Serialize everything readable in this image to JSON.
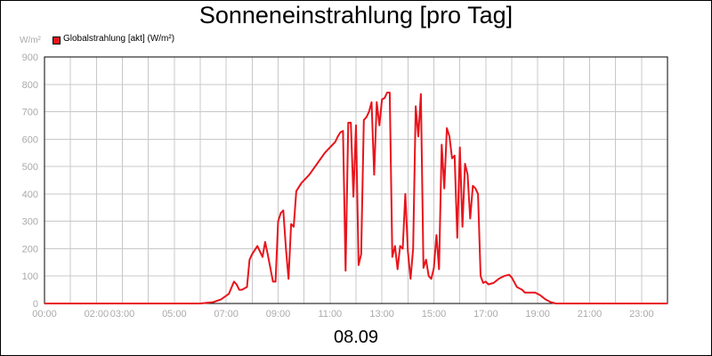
{
  "chart_data": {
    "type": "line",
    "title": "Sonneneinstrahlung [pro Tag]",
    "unit_label": "W/m²",
    "date_label": "08.09",
    "grid": true,
    "legend_placement": "top-left",
    "ylim": [
      0,
      900
    ],
    "xlim": [
      0,
      24
    ],
    "y_ticks": [
      "0",
      "100",
      "200",
      "300",
      "400",
      "500",
      "600",
      "700",
      "800",
      "900"
    ],
    "x_ticks": [
      {
        "pos": 0,
        "label": "00:00"
      },
      {
        "pos": 2,
        "label": "02:00"
      },
      {
        "pos": 3,
        "label": "03:00"
      },
      {
        "pos": 5,
        "label": "05:00"
      },
      {
        "pos": 7,
        "label": "07:00"
      },
      {
        "pos": 9,
        "label": "09:00"
      },
      {
        "pos": 11,
        "label": "11:00"
      },
      {
        "pos": 13,
        "label": "13:00"
      },
      {
        "pos": 15,
        "label": "15:00"
      },
      {
        "pos": 17,
        "label": "17:00"
      },
      {
        "pos": 19,
        "label": "19:00"
      },
      {
        "pos": 21,
        "label": "21:00"
      },
      {
        "pos": 23,
        "label": "23:00"
      }
    ],
    "series": [
      {
        "name": "Globalstrahlung [akt] (W/m²)",
        "color": "#e8141c",
        "x": [
          0,
          6.0,
          6.5,
          6.8,
          7.1,
          7.3,
          7.4,
          7.5,
          7.6,
          7.8,
          7.9,
          8.0,
          8.2,
          8.4,
          8.5,
          8.6,
          8.8,
          8.9,
          9.0,
          9.1,
          9.2,
          9.3,
          9.4,
          9.5,
          9.6,
          9.7,
          9.8,
          9.9,
          10.2,
          10.5,
          10.8,
          11.0,
          11.1,
          11.2,
          11.3,
          11.4,
          11.5,
          11.6,
          11.7,
          11.8,
          11.9,
          12.0,
          12.1,
          12.2,
          12.3,
          12.4,
          12.5,
          12.6,
          12.7,
          12.8,
          12.9,
          13.0,
          13.1,
          13.2,
          13.3,
          13.4,
          13.5,
          13.6,
          13.7,
          13.8,
          13.9,
          14.0,
          14.1,
          14.2,
          14.3,
          14.4,
          14.5,
          14.6,
          14.7,
          14.8,
          14.9,
          15.0,
          15.1,
          15.2,
          15.3,
          15.4,
          15.5,
          15.6,
          15.7,
          15.8,
          15.9,
          16.0,
          16.1,
          16.2,
          16.3,
          16.4,
          16.5,
          16.6,
          16.7,
          16.8,
          16.9,
          17.0,
          17.1,
          17.3,
          17.5,
          17.7,
          17.9,
          18.0,
          18.2,
          18.4,
          18.5,
          18.7,
          18.9,
          19.1,
          19.3,
          19.5,
          19.7,
          20.0,
          24
        ]
      }
    ]
  }
}
